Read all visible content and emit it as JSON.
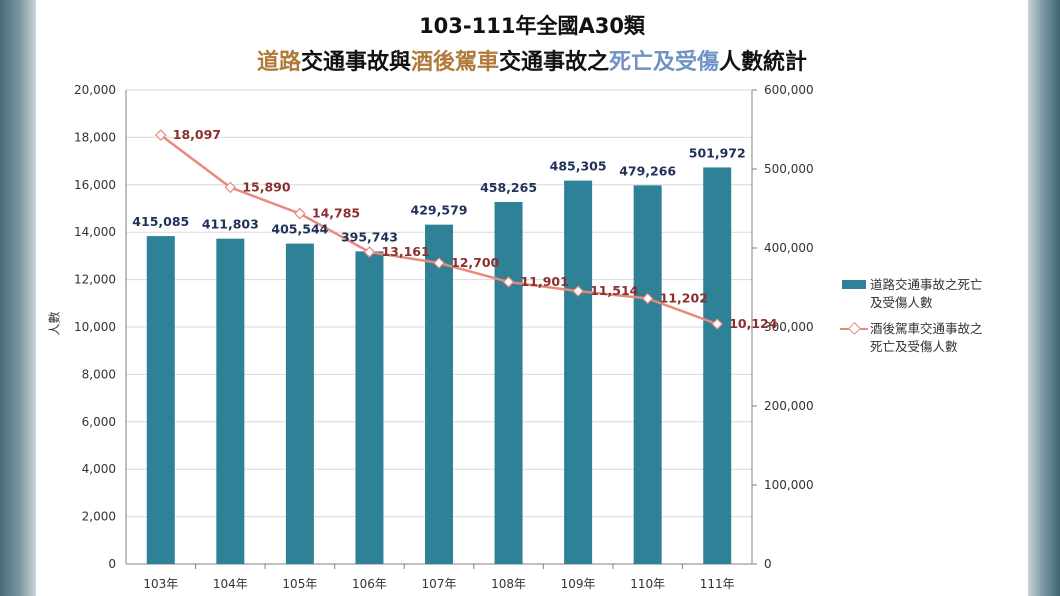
{
  "title": {
    "line1": "103-111年全國A30類",
    "line2_parts": [
      {
        "text": "道路",
        "color": "#b07a3a"
      },
      {
        "text": "交通事故與",
        "color": "#111111"
      },
      {
        "text": "酒後駕車",
        "color": "#b07a3a"
      },
      {
        "text": "交通事故之",
        "color": "#111111"
      },
      {
        "text": "死亡及受傷",
        "color": "#6f93c4"
      },
      {
        "text": "人數統計",
        "color": "#111111"
      }
    ]
  },
  "colors": {
    "bar": "#2e8196",
    "line": "#e8897d",
    "marker_fill": "#ffffff",
    "bar_label": "#1f3158",
    "line_label": "#8b2f2f"
  },
  "chart_data": {
    "type": "bar",
    "categories": [
      "103年",
      "104年",
      "105年",
      "106年",
      "107年",
      "108年",
      "109年",
      "110年",
      "111年"
    ],
    "series": [
      {
        "name": "道路交通事故之死亡及受傷人數",
        "chart_type": "bar",
        "axis": "right",
        "values": [
          415085,
          411803,
          405544,
          395743,
          429579,
          458265,
          485305,
          479266,
          501972
        ],
        "labels": [
          "415,085",
          "411,803",
          "405,544",
          "395,743",
          "429,579",
          "458,265",
          "485,305",
          "479,266",
          "501,972"
        ]
      },
      {
        "name": "酒後駕車交通事故之死亡及受傷人數",
        "chart_type": "line",
        "axis": "left",
        "values": [
          18097,
          15890,
          14785,
          13161,
          12700,
          11901,
          11514,
          11202,
          10124
        ],
        "labels": [
          "18,097",
          "15,890",
          "14,785",
          "13,161",
          "12,700",
          "11,901",
          "11,514",
          "11,202",
          "10,124"
        ]
      }
    ],
    "ylabel": "人數",
    "left_axis": {
      "ylim": [
        0,
        20000
      ],
      "ticks": [
        "0",
        "2,000",
        "4,000",
        "6,000",
        "8,000",
        "10,000",
        "12,000",
        "14,000",
        "16,000",
        "18,000",
        "20,000"
      ]
    },
    "right_axis": {
      "ylim": [
        0,
        600000
      ],
      "ticks": [
        "0",
        "100,000",
        "200,000",
        "300,000",
        "400,000",
        "500,000",
        "600,000"
      ]
    },
    "grid": true,
    "legend_position": "right",
    "legend": [
      {
        "line1": "道路交通事故之死亡",
        "line2": "及受傷人數"
      },
      {
        "line1": "酒後駕車交通事故之",
        "line2": "死亡及受傷人數"
      }
    ]
  }
}
